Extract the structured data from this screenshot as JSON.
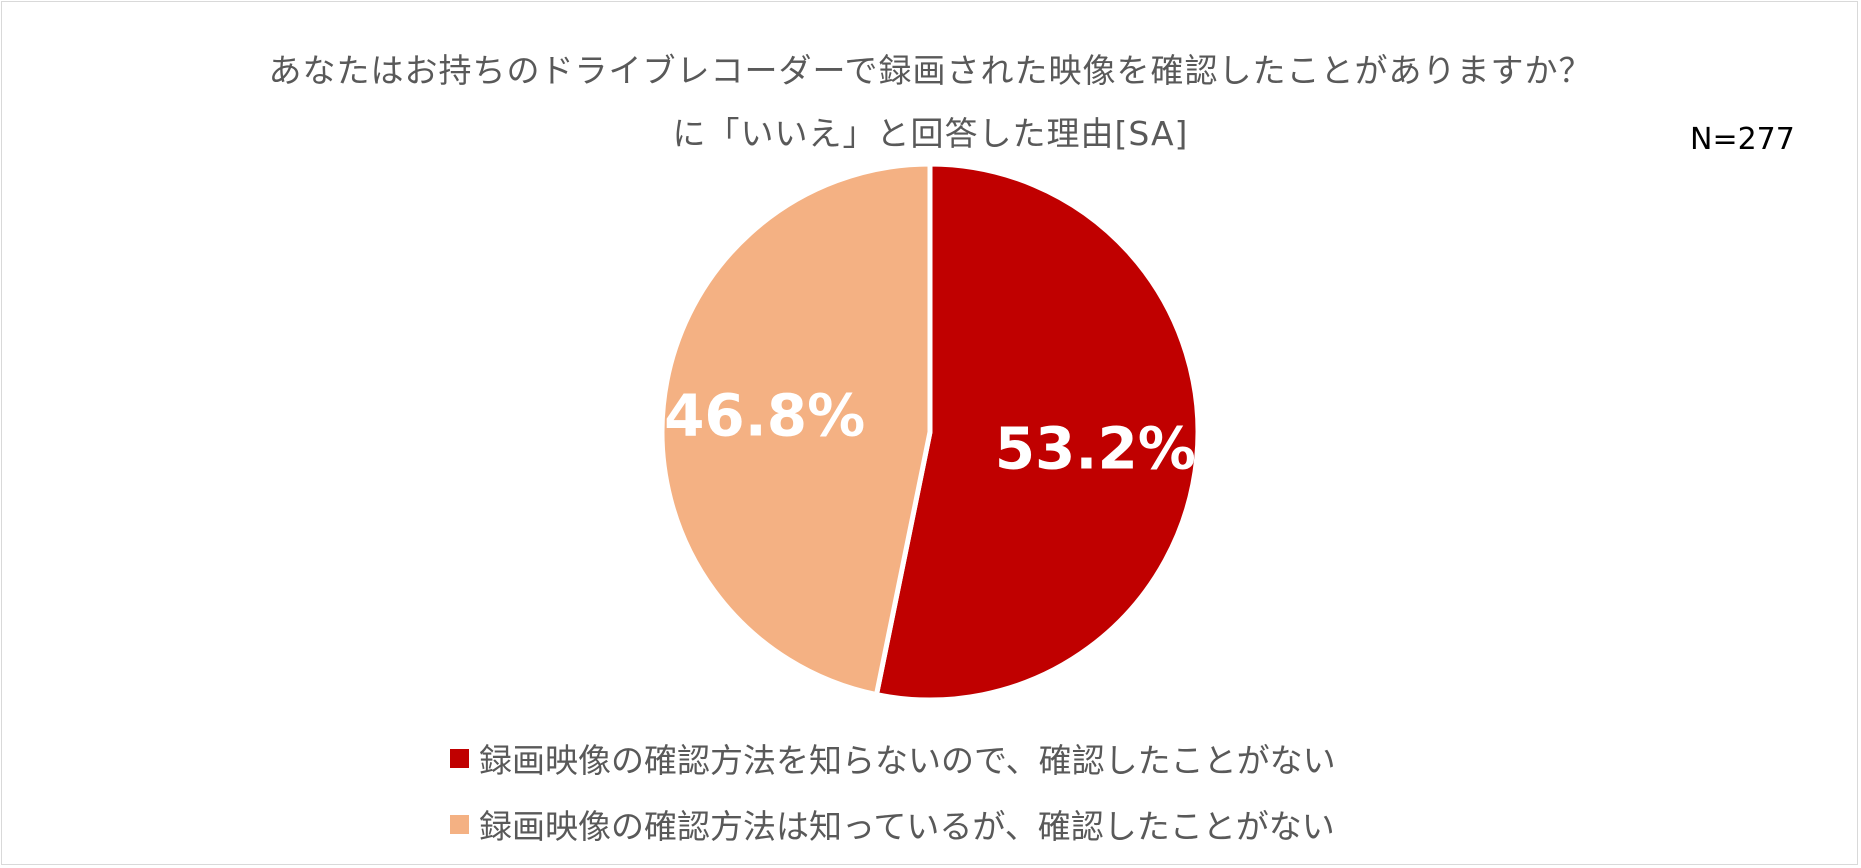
{
  "chart_data": {
    "type": "pie",
    "title": "あなたはお持ちのドライブレコーダーで録画された映像を確認したことがありますか？",
    "subtitle": "に「いいえ」と回答した理由[SA]",
    "n_label": "N=277",
    "slices": [
      {
        "name": "録画映像の確認方法を知らないので、確認したことがない",
        "value": 53.2,
        "label": "53.2%",
        "color": "#C00000"
      },
      {
        "name": "録画映像の確認方法は知っているが、確認したことがない",
        "value": 46.8,
        "label": "46.8%",
        "color": "#F4B183"
      }
    ],
    "start_angle_deg": 0,
    "direction": "clockwise",
    "legend_position": "bottom"
  }
}
